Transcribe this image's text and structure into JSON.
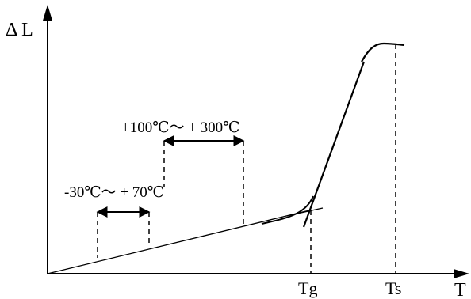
{
  "axes": {
    "y_label": "Δ L",
    "x_label": "T"
  },
  "marks": {
    "tg": "Tg",
    "ts": "Ts"
  },
  "ranges": {
    "low": "-30℃～ + 70℃",
    "high": "+100℃～ + 300℃"
  },
  "colors": {
    "ink": "#000000",
    "background": "#ffffff"
  }
}
